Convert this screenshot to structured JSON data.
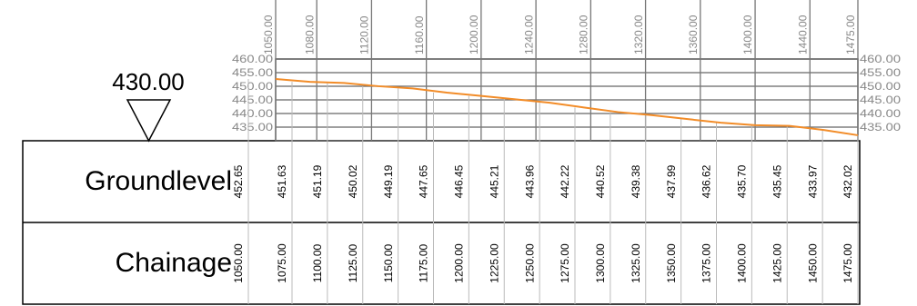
{
  "chart_data": {
    "type": "line",
    "datum": {
      "value": 430,
      "label": "430.00"
    },
    "x_label": "Chainage",
    "x": [
      1050,
      1075,
      1100,
      1125,
      1150,
      1175,
      1200,
      1225,
      1250,
      1275,
      1300,
      1325,
      1350,
      1375,
      1400,
      1425,
      1450,
      1475
    ],
    "x_value_labels": [
      "1050.00",
      "1075.00",
      "1100.00",
      "1125.00",
      "1150.00",
      "1175.00",
      "1200.00",
      "1225.00",
      "1250.00",
      "1275.00",
      "1300.00",
      "1325.00",
      "1350.00",
      "1375.00",
      "1400.00",
      "1425.00",
      "1450.00",
      "1475.00"
    ],
    "series": [
      {
        "name": "Groundlevel",
        "color": "#f28c28",
        "values": [
          452.65,
          451.63,
          451.19,
          450.02,
          449.19,
          447.65,
          446.45,
          445.21,
          443.96,
          442.22,
          440.52,
          439.38,
          437.99,
          436.62,
          435.7,
          435.45,
          433.97,
          432.02
        ],
        "value_labels": [
          "452.65",
          "451.63",
          "451.19",
          "450.02",
          "449.19",
          "447.65",
          "446.45",
          "445.21",
          "443.96",
          "442.22",
          "440.52",
          "439.38",
          "437.99",
          "436.62",
          "435.70",
          "435.45",
          "433.97",
          "432.02"
        ]
      }
    ],
    "xlim": [
      1050,
      1475
    ],
    "xticks": [
      {
        "value": 1050,
        "label": "1050.00"
      },
      {
        "value": 1080,
        "label": "1080.00"
      },
      {
        "value": 1120,
        "label": "1120.00"
      },
      {
        "value": 1160,
        "label": "1160.00"
      },
      {
        "value": 1200,
        "label": "1200.00"
      },
      {
        "value": 1240,
        "label": "1240.00"
      },
      {
        "value": 1280,
        "label": "1280.00"
      },
      {
        "value": 1320,
        "label": "1320.00"
      },
      {
        "value": 1360,
        "label": "1360.00"
      },
      {
        "value": 1400,
        "label": "1400.00"
      },
      {
        "value": 1440,
        "label": "1440.00"
      },
      {
        "value": 1475,
        "label": "1475.00"
      }
    ],
    "ylim": [
      430,
      460
    ],
    "yticks": [
      {
        "value": 435,
        "label": "435.00"
      },
      {
        "value": 440,
        "label": "440.00"
      },
      {
        "value": 445,
        "label": "445.00"
      },
      {
        "value": 450,
        "label": "450.00"
      },
      {
        "value": 455,
        "label": "455.00"
      },
      {
        "value": 460,
        "label": "460.00"
      }
    ],
    "grid": true
  }
}
